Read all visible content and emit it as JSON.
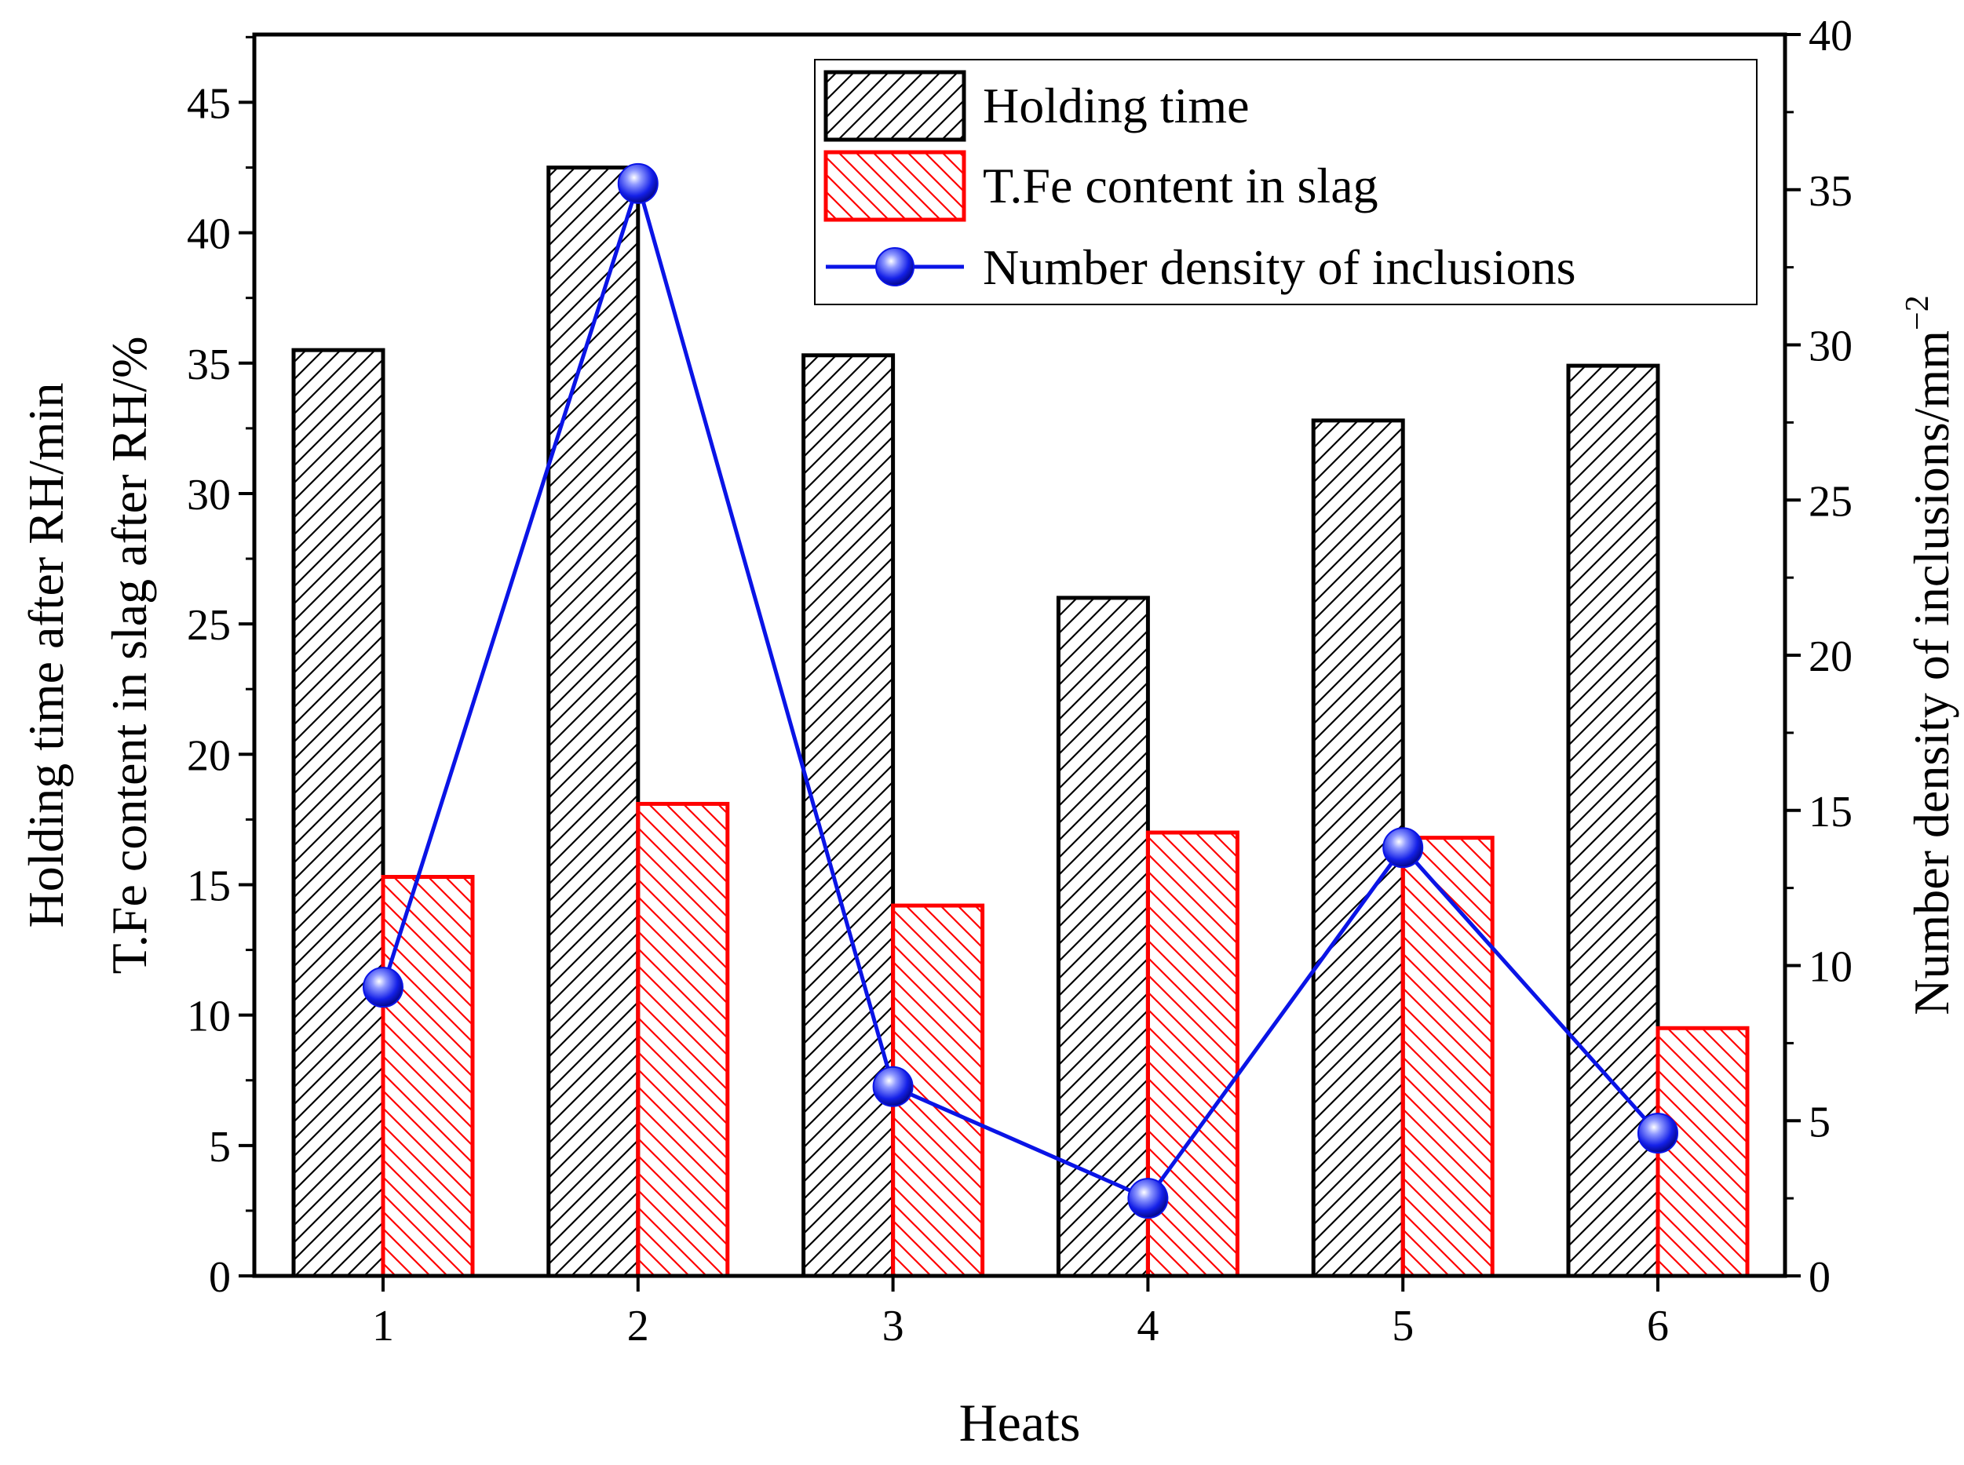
{
  "chart_data": {
    "type": "bar",
    "categories": [
      "1",
      "2",
      "3",
      "4",
      "5",
      "6"
    ],
    "xlabel": "Heats",
    "ylabel_lines": [
      "Holding time after RH/min",
      "T.Fe content in slag after RH/%"
    ],
    "ylabel2_text": "Number density of inclusions/mm",
    "ylabel2_superscript": "−2",
    "ylim": [
      0,
      47.6
    ],
    "yticks": [
      "0",
      "5",
      "10",
      "15",
      "20",
      "25",
      "30",
      "35",
      "40",
      "45"
    ],
    "ylim2": [
      0,
      40
    ],
    "yticks2": [
      "0",
      "5",
      "10",
      "15",
      "20",
      "25",
      "30",
      "35",
      "40"
    ],
    "series": [
      {
        "name": "Holding time",
        "kind": "bar",
        "axis": "left",
        "color": "#000000",
        "hatch": "forward",
        "values": [
          35.5,
          42.5,
          35.3,
          26.0,
          32.8,
          34.9
        ]
      },
      {
        "name": "T.Fe content in slag",
        "kind": "bar",
        "axis": "left",
        "color": "#ff0000",
        "hatch": "backward",
        "values": [
          15.3,
          18.1,
          14.2,
          17.0,
          16.8,
          9.5
        ]
      },
      {
        "name": "Number density of inclusions",
        "kind": "line",
        "axis": "right",
        "color": "#0a14e6",
        "marker": "sphere",
        "values": [
          9.3,
          35.2,
          6.1,
          2.5,
          13.8,
          4.6
        ]
      }
    ],
    "legend_position": "top-right"
  }
}
